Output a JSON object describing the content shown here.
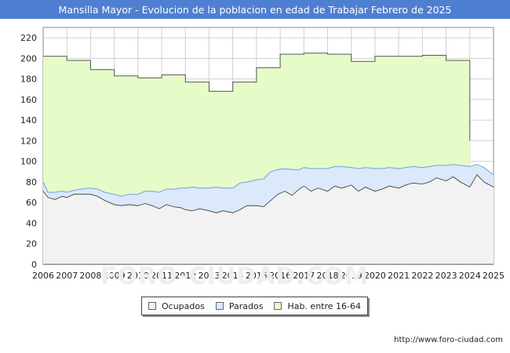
{
  "title": "Mansilla Mayor - Evolucion de la poblacion en edad de Trabajar Febrero de 2025",
  "footer_url": "http://www.foro-ciudad.com",
  "watermark": "FORO-CIUDAD.COM",
  "colors": {
    "title_bg": "#4f7fd1",
    "ocupados_fill": "#f2f2f2",
    "ocupados_line": "#333333",
    "parados_fill": "#dbe9fb",
    "parados_line": "#6fa0e0",
    "hab_fill": "#e6fcc8",
    "hab_line": "#555555",
    "grid": "#d0d0d0"
  },
  "chart_data": {
    "type": "area",
    "title": "Mansilla Mayor - Evolucion de la poblacion en edad de Trabajar Febrero de 2025",
    "xlabel": "",
    "ylabel": "",
    "xlim": [
      2006,
      2025
    ],
    "ylim": [
      0,
      230
    ],
    "y_ticks": [
      0,
      20,
      40,
      60,
      80,
      100,
      120,
      140,
      160,
      180,
      200,
      220
    ],
    "x_ticks": [
      "2006",
      "2007",
      "2008",
      "2009",
      "2010",
      "2011",
      "2012",
      "2013",
      "2014",
      "2015",
      "2016",
      "2017",
      "2018",
      "2019",
      "2020",
      "2021",
      "2022",
      "2023",
      "2024",
      "2025"
    ],
    "grid": true,
    "legend_position": "bottom",
    "series": [
      {
        "name": "Ocupados",
        "x": [
          2006.0,
          2006.2,
          2006.5,
          2006.8,
          2007.0,
          2007.3,
          2007.6,
          2008.0,
          2008.3,
          2008.6,
          2009.0,
          2009.3,
          2009.6,
          2010.0,
          2010.3,
          2010.6,
          2010.9,
          2011.2,
          2011.5,
          2011.8,
          2012.0,
          2012.3,
          2012.6,
          2013.0,
          2013.3,
          2013.6,
          2014.0,
          2014.3,
          2014.6,
          2015.0,
          2015.3,
          2015.6,
          2015.9,
          2016.2,
          2016.5,
          2016.8,
          2017.0,
          2017.3,
          2017.6,
          2018.0,
          2018.3,
          2018.6,
          2019.0,
          2019.3,
          2019.6,
          2020.0,
          2020.3,
          2020.6,
          2021.0,
          2021.3,
          2021.6,
          2022.0,
          2022.3,
          2022.6,
          2023.0,
          2023.3,
          2023.6,
          2024.0,
          2024.3,
          2024.6,
          2025.0
        ],
        "values": [
          71,
          65,
          63,
          66,
          65,
          68,
          68,
          68,
          66,
          62,
          58,
          57,
          58,
          57,
          59,
          57,
          54,
          58,
          56,
          55,
          53,
          52,
          54,
          52,
          50,
          52,
          50,
          53,
          57,
          57,
          56,
          62,
          68,
          71,
          67,
          73,
          76,
          71,
          74,
          71,
          76,
          74,
          77,
          71,
          75,
          71,
          73,
          76,
          74,
          77,
          79,
          78,
          80,
          84,
          81,
          85,
          80,
          75,
          87,
          80,
          75
        ]
      },
      {
        "name": "Parados",
        "x": [
          2006.0,
          2006.2,
          2006.5,
          2006.8,
          2007.0,
          2007.3,
          2007.6,
          2008.0,
          2008.3,
          2008.6,
          2009.0,
          2009.3,
          2009.6,
          2010.0,
          2010.3,
          2010.6,
          2010.9,
          2011.2,
          2011.5,
          2011.8,
          2012.0,
          2012.3,
          2012.6,
          2013.0,
          2013.3,
          2013.6,
          2014.0,
          2014.3,
          2014.6,
          2015.0,
          2015.3,
          2015.6,
          2015.9,
          2016.2,
          2016.5,
          2016.8,
          2017.0,
          2017.3,
          2017.6,
          2018.0,
          2018.3,
          2018.6,
          2019.0,
          2019.3,
          2019.6,
          2020.0,
          2020.3,
          2020.6,
          2021.0,
          2021.3,
          2021.6,
          2022.0,
          2022.3,
          2022.6,
          2023.0,
          2023.3,
          2023.6,
          2024.0,
          2024.3,
          2024.6,
          2025.0
        ],
        "values": [
          9,
          5,
          7,
          5,
          5,
          4,
          5,
          6,
          7,
          8,
          10,
          9,
          10,
          11,
          12,
          14,
          16,
          15,
          17,
          19,
          21,
          23,
          20,
          22,
          25,
          22,
          24,
          26,
          23,
          25,
          27,
          28,
          24,
          22,
          25,
          19,
          18,
          22,
          19,
          22,
          19,
          21,
          17,
          22,
          19,
          22,
          20,
          18,
          19,
          17,
          16,
          16,
          15,
          12,
          15,
          12,
          16,
          20,
          10,
          14,
          12
        ]
      },
      {
        "name": "Hab. entre 16-64",
        "x": [
          2006.0,
          2007.0,
          2008.0,
          2009.0,
          2010.0,
          2011.0,
          2012.0,
          2013.0,
          2014.0,
          2015.0,
          2016.0,
          2017.0,
          2018.0,
          2019.0,
          2020.0,
          2021.0,
          2022.0,
          2023.0,
          2024.0
        ],
        "values": [
          202,
          198,
          189,
          183,
          181,
          184,
          177,
          168,
          177,
          191,
          204,
          205,
          204,
          197,
          202,
          202,
          203,
          198,
          120
        ]
      }
    ]
  }
}
